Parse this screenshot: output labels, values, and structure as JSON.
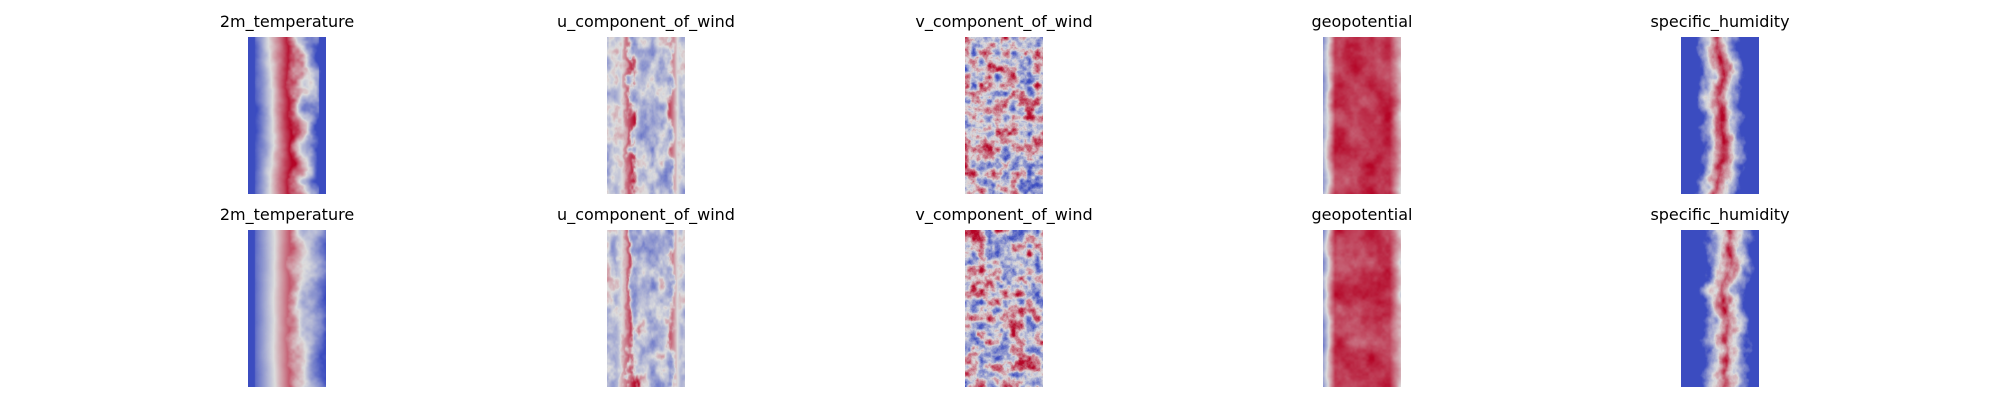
{
  "chart_data": [
    {
      "type": "heatmap",
      "title": "2m_temperature",
      "row": 1,
      "pattern": "temperature",
      "colormap": "coolwarm"
    },
    {
      "type": "heatmap",
      "title": "u_component_of_wind",
      "row": 1,
      "pattern": "u_wind",
      "colormap": "coolwarm"
    },
    {
      "type": "heatmap",
      "title": "v_component_of_wind",
      "row": 1,
      "pattern": "v_wind",
      "colormap": "coolwarm"
    },
    {
      "type": "heatmap",
      "title": "geopotential",
      "row": 1,
      "pattern": "geopotential",
      "colormap": "coolwarm"
    },
    {
      "type": "heatmap",
      "title": "specific_humidity",
      "row": 1,
      "pattern": "humidity",
      "colormap": "coolwarm"
    },
    {
      "type": "heatmap",
      "title": "2m_temperature",
      "row": 2,
      "pattern": "temperature_soft",
      "colormap": "coolwarm"
    },
    {
      "type": "heatmap",
      "title": "u_component_of_wind",
      "row": 2,
      "pattern": "u_wind",
      "colormap": "coolwarm"
    },
    {
      "type": "heatmap",
      "title": "v_component_of_wind",
      "row": 2,
      "pattern": "v_wind",
      "colormap": "coolwarm"
    },
    {
      "type": "heatmap",
      "title": "geopotential",
      "row": 2,
      "pattern": "geopotential",
      "colormap": "coolwarm"
    },
    {
      "type": "heatmap",
      "title": "specific_humidity",
      "row": 2,
      "pattern": "humidity_soft",
      "colormap": "coolwarm"
    }
  ],
  "colors": {
    "cold": "#3b4cc0",
    "neutral": "#dddddd",
    "warm": "#b40426"
  }
}
